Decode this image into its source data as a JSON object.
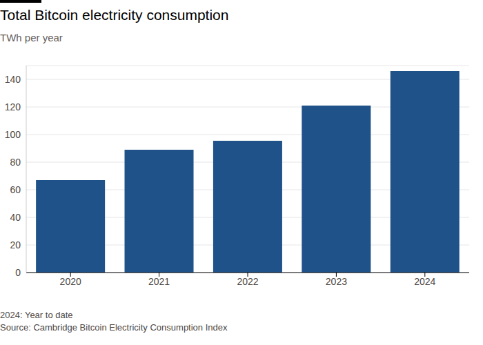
{
  "chart_data": {
    "type": "bar",
    "title": "Total Bitcoin electricity consumption",
    "subtitle": "TWh per year",
    "categories": [
      "2020",
      "2021",
      "2022",
      "2023",
      "2024"
    ],
    "values": [
      67,
      89,
      95.5,
      121,
      146
    ],
    "color": "#1f5289",
    "ylim": [
      0,
      150
    ],
    "yticks": [
      0,
      20,
      40,
      60,
      80,
      100,
      120,
      140
    ],
    "grid": true,
    "annotations": [
      "2024: Year to date",
      "Source: Cambridge Bitcoin Electricity Consumption Index"
    ]
  }
}
